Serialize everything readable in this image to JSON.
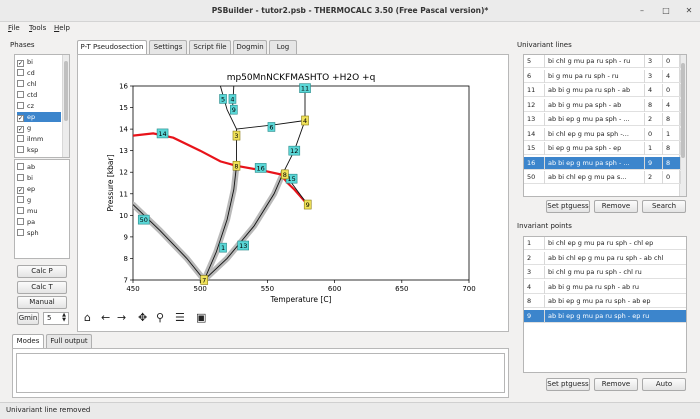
{
  "window": {
    "title": "PSBuilder - tutor2.psb - THERMOCALC 3.50 (Free Pascal version)*"
  },
  "menu": [
    "File",
    "Tools",
    "Help"
  ],
  "phases": {
    "label": "Phases",
    "list1": [
      {
        "name": "bi",
        "checked": true,
        "selected": false
      },
      {
        "name": "cd",
        "checked": false,
        "selected": false
      },
      {
        "name": "chl",
        "checked": false,
        "selected": false
      },
      {
        "name": "ctd",
        "checked": false,
        "selected": false
      },
      {
        "name": "cz",
        "checked": false,
        "selected": false
      },
      {
        "name": "ep",
        "checked": true,
        "selected": true
      },
      {
        "name": "g",
        "checked": true,
        "selected": false
      },
      {
        "name": "ilmm",
        "checked": false,
        "selected": false
      },
      {
        "name": "ksp",
        "checked": false,
        "selected": false
      }
    ],
    "list2": [
      {
        "name": "ab",
        "checked": false
      },
      {
        "name": "bi",
        "checked": false
      },
      {
        "name": "ep",
        "checked": true
      },
      {
        "name": "g",
        "checked": false
      },
      {
        "name": "mu",
        "checked": false
      },
      {
        "name": "pa",
        "checked": false
      },
      {
        "name": "sph",
        "checked": false
      }
    ],
    "calc_p": "Calc P",
    "calc_t": "Calc T",
    "manual": "Manual",
    "gmin_label": "Gmin",
    "gmin_value": "5"
  },
  "tabs": [
    "P-T Pseudosection",
    "Settings",
    "Script file",
    "Dogmin",
    "Log"
  ],
  "bottom_tabs": [
    "Modes",
    "Full output"
  ],
  "chart_data": {
    "type": "line",
    "title": "mp50MnNCKFMASHTO +H2O +q",
    "xlabel": "Temperature [C]",
    "ylabel": "Pressure [kbar]",
    "xlim": [
      450,
      700
    ],
    "ylim": [
      7,
      16
    ],
    "xticks": [
      450,
      500,
      550,
      600,
      650,
      700
    ],
    "yticks": [
      7,
      8,
      9,
      10,
      11,
      12,
      13,
      14,
      15,
      16
    ],
    "univariant_lines": [
      {
        "id": "50",
        "points": [
          [
            450,
            10.5
          ],
          [
            470,
            9.3
          ],
          [
            490,
            8.0
          ],
          [
            503,
            7.0
          ]
        ]
      },
      {
        "id": "1",
        "points": [
          [
            503,
            7.0
          ],
          [
            512,
            8.3
          ],
          [
            520,
            9.8
          ],
          [
            525,
            11.2
          ],
          [
            527,
            12.3
          ]
        ]
      },
      {
        "id": "13",
        "points": [
          [
            503,
            7.0
          ],
          [
            520,
            8.0
          ],
          [
            540,
            9.5
          ],
          [
            555,
            11.0
          ],
          [
            562,
            12.0
          ]
        ]
      },
      {
        "id": "14",
        "points": [
          [
            450,
            13.7
          ],
          [
            465,
            13.8
          ],
          [
            480,
            13.6
          ],
          [
            500,
            13.0
          ],
          [
            515,
            12.5
          ],
          [
            527,
            12.3
          ]
        ]
      },
      {
        "id": "16",
        "points": [
          [
            527,
            12.3
          ],
          [
            545,
            12.1
          ],
          [
            560,
            11.9
          ],
          [
            565,
            11.5
          ],
          [
            570,
            11.2
          ],
          [
            580,
            10.5
          ]
        ]
      },
      {
        "id": "5",
        "points": [
          [
            515,
            16.0
          ],
          [
            520,
            14.9
          ]
        ]
      },
      {
        "id": "4",
        "points": [
          [
            525,
            16.0
          ],
          [
            524,
            14.9
          ]
        ]
      },
      {
        "id": "3",
        "points": [
          [
            520,
            14.9
          ],
          [
            527,
            14.0
          ],
          [
            527,
            12.3
          ]
        ]
      },
      {
        "id": "6",
        "points": [
          [
            527,
            14.0
          ],
          [
            555,
            14.2
          ],
          [
            578,
            14.4
          ]
        ]
      },
      {
        "id": "11",
        "points": [
          [
            578,
            16.0
          ],
          [
            578,
            14.4
          ]
        ]
      },
      {
        "id": "12",
        "points": [
          [
            578,
            14.4
          ],
          [
            570,
            13.0
          ],
          [
            562,
            12.0
          ]
        ]
      },
      {
        "id": "15",
        "points": [
          [
            562,
            12.0
          ],
          [
            580,
            10.5
          ]
        ]
      }
    ],
    "highlight_line": "16",
    "invariant_points": [
      {
        "id": "7",
        "x": 503,
        "y": 7.0
      },
      {
        "id": "9",
        "x": 580,
        "y": 10.5
      },
      {
        "id": "8",
        "x": 563,
        "y": 11.9
      },
      {
        "id": "8",
        "x": 527,
        "y": 12.3
      },
      {
        "id": "3",
        "x": 527,
        "y": 13.7
      },
      {
        "id": "4",
        "x": 578,
        "y": 14.4
      }
    ],
    "line_labels": [
      {
        "text": "50",
        "x": 458,
        "y": 9.8
      },
      {
        "text": "1",
        "x": 517,
        "y": 8.5
      },
      {
        "text": "13",
        "x": 532,
        "y": 8.6
      },
      {
        "text": "14",
        "x": 472,
        "y": 13.8
      },
      {
        "text": "16",
        "x": 545,
        "y": 12.2
      },
      {
        "text": "5",
        "x": 517,
        "y": 15.4
      },
      {
        "text": "4",
        "x": 524,
        "y": 15.4
      },
      {
        "text": "9",
        "x": 525,
        "y": 14.9
      },
      {
        "text": "6",
        "x": 553,
        "y": 14.1
      },
      {
        "text": "11",
        "x": 578,
        "y": 15.9
      },
      {
        "text": "12",
        "x": 570,
        "y": 13.0
      },
      {
        "text": "15",
        "x": 568,
        "y": 11.7
      }
    ]
  },
  "univariant": {
    "label": "Univariant lines",
    "rows": [
      {
        "id": "5",
        "phases": "bi chl g mu pa ru sph - ru",
        "a": "3",
        "b": "0"
      },
      {
        "id": "6",
        "phases": "bi g mu pa ru sph - ru",
        "a": "3",
        "b": "4"
      },
      {
        "id": "11",
        "phases": "ab bi g mu pa ru sph - ab",
        "a": "4",
        "b": "0"
      },
      {
        "id": "12",
        "phases": "ab bi g mu pa sph - ab",
        "a": "8",
        "b": "4"
      },
      {
        "id": "13",
        "phases": "ab bi ep g mu pa sph - ...",
        "a": "2",
        "b": "8"
      },
      {
        "id": "14",
        "phases": "bi chl ep g mu pa sph -...",
        "a": "0",
        "b": "1"
      },
      {
        "id": "15",
        "phases": "bi ep g mu pa sph - ep",
        "a": "1",
        "b": "8"
      },
      {
        "id": "16",
        "phases": "ab bi ep g mu pa sph - ...",
        "a": "9",
        "b": "8",
        "sel": true
      },
      {
        "id": "50",
        "phases": "ab bi chl ep g mu pa s...",
        "a": "2",
        "b": "0"
      }
    ],
    "set_ptguess": "Set ptguess",
    "remove": "Remove",
    "search": "Search"
  },
  "invariant": {
    "label": "Invariant points",
    "rows": [
      {
        "id": "1",
        "phases": "bi chl ep g mu pa ru sph - chl ep"
      },
      {
        "id": "2",
        "phases": "ab bi chl ep g mu pa ru sph - ab chl"
      },
      {
        "id": "3",
        "phases": "bi chl g mu pa ru sph - chl ru"
      },
      {
        "id": "4",
        "phases": "ab bi g mu pa ru sph - ab ru"
      },
      {
        "id": "8",
        "phases": "ab bi ep g mu pa ru sph - ab ep"
      },
      {
        "id": "9",
        "phases": "ab bi ep g mu pa ru sph - ep ru",
        "sel": true
      }
    ],
    "set_ptguess": "Set ptguess",
    "remove": "Remove",
    "auto": "Auto"
  },
  "status": "Univariant line removed"
}
